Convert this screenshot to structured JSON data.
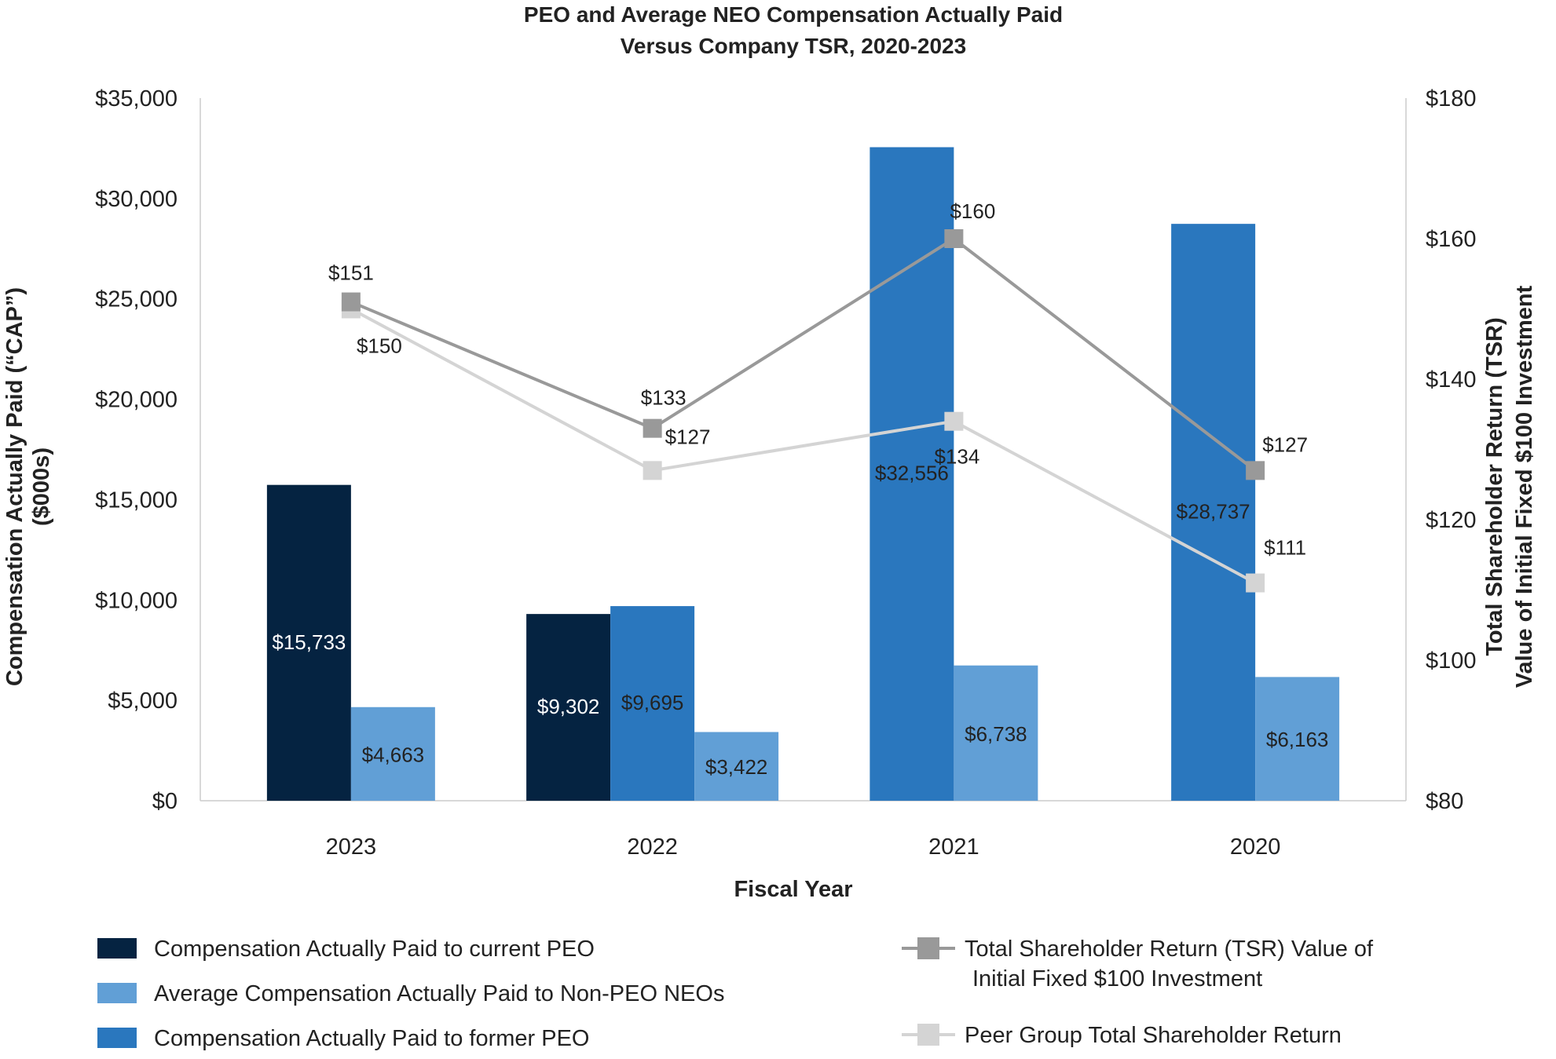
{
  "chart_data": {
    "type": "bar",
    "title": [
      "PEO and Average NEO Compensation Actually Paid",
      "Versus Company TSR, 2020-2023"
    ],
    "xlabel": "Fiscal Year",
    "ylabel_left": [
      "Compensation Actually Paid (“CAP”)",
      "($000s)"
    ],
    "ylabel_right": [
      "Total Shareholder Return (TSR)",
      "Value of Initial Fixed $100 Investment"
    ],
    "ylim_left": [
      0,
      35000
    ],
    "ylim_right": [
      80,
      180
    ],
    "yticks_left": [
      "$0",
      "$5,000",
      "$10,000",
      "$15,000",
      "$20,000",
      "$25,000",
      "$30,000",
      "$35,000"
    ],
    "yticks_right": [
      "$80",
      "$100",
      "$120",
      "$140",
      "$160",
      "$180"
    ],
    "categories": [
      "2023",
      "2022",
      "2021",
      "2020"
    ],
    "bar_series": [
      {
        "key": "current_peo",
        "color": "#052341",
        "label_color": "#ffffff",
        "values": [
          15733,
          9302,
          null,
          null
        ],
        "labels": [
          "$15,733",
          "$9,302",
          "",
          ""
        ]
      },
      {
        "key": "former_peo",
        "color": "#2A77BE",
        "label_color": "#222222",
        "values": [
          null,
          9695,
          32556,
          28737
        ],
        "labels": [
          "",
          "$9,695",
          "$32,556",
          "$28,737"
        ]
      },
      {
        "key": "non_peo_neos",
        "color": "#619FD6",
        "label_color": "#222222",
        "values": [
          4663,
          3422,
          6738,
          6163
        ],
        "labels": [
          "$4,663",
          "$3,422",
          "$6,738",
          "$6,163"
        ]
      }
    ],
    "line_series": [
      {
        "key": "tsr",
        "color": "#999999",
        "values": [
          151,
          133,
          160,
          127
        ],
        "labels": [
          "$151",
          "$133",
          "$160",
          "$127"
        ]
      },
      {
        "key": "peer_tsr",
        "color": "#D4D4D4",
        "values": [
          150,
          127,
          134,
          111
        ],
        "labels": [
          "$150",
          "$127",
          "$134",
          "$111"
        ]
      }
    ],
    "legend": {
      "placement": "bottom",
      "items": [
        {
          "kind": "bar",
          "color": "#052341",
          "lines": [
            "Compensation Actually Paid to current PEO"
          ]
        },
        {
          "kind": "bar",
          "color": "#619FD6",
          "lines": [
            "Average Compensation Actually Paid to Non-PEO NEOs"
          ]
        },
        {
          "kind": "bar",
          "color": "#2A77BE",
          "lines": [
            "Compensation Actually Paid to former PEO"
          ]
        },
        {
          "kind": "line",
          "color": "#999999",
          "lines": [
            "Total Shareholder Return (TSR) Value of",
            "Initial Fixed $100 Investment"
          ]
        },
        {
          "kind": "line",
          "color": "#D4D4D4",
          "lines": [
            "Peer Group Total Shareholder Return"
          ]
        }
      ]
    }
  }
}
